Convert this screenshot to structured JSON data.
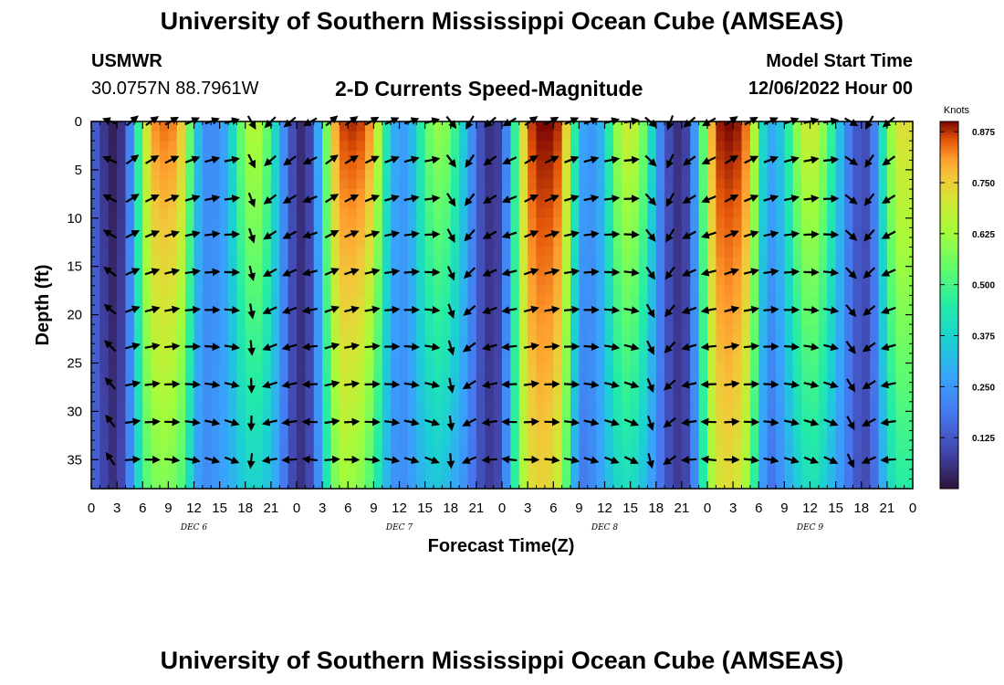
{
  "header": {
    "title": "University of Southern Mississippi Ocean Cube (AMSEAS)",
    "station": "USMWR",
    "coordinates": "30.0757N  88.7961W",
    "subtitle": "2-D Currents Speed-Magnitude",
    "model_start_label": "Model Start Time",
    "model_start_value": "12/06/2022 Hour 00"
  },
  "footer": {
    "title": "University of Southern Mississippi Ocean Cube (AMSEAS)"
  },
  "chart_data": {
    "type": "heatmap",
    "title": "2-D Currents Speed-Magnitude",
    "xlabel": "Forecast Time(Z)",
    "ylabel": "Depth (ft)",
    "x_ticks": [
      "0",
      "3",
      "6",
      "9",
      "12",
      "15",
      "18",
      "21",
      "0",
      "3",
      "6",
      "9",
      "12",
      "15",
      "18",
      "21",
      "0",
      "3",
      "6",
      "9",
      "12",
      "15",
      "18",
      "21",
      "0",
      "3",
      "6",
      "9",
      "12",
      "15",
      "18",
      "21",
      "0"
    ],
    "x_range_hours": [
      0,
      96
    ],
    "day_labels": [
      {
        "label": "DEC 6",
        "hour": 12
      },
      {
        "label": "DEC 7",
        "hour": 36
      },
      {
        "label": "DEC 8",
        "hour": 60
      },
      {
        "label": "DEC 9",
        "hour": 84
      }
    ],
    "y_ticks": [
      "0",
      "5",
      "10",
      "15",
      "20",
      "25",
      "30",
      "35"
    ],
    "y_tick_values": [
      0,
      5,
      10,
      15,
      20,
      25,
      30,
      35
    ],
    "y_range_ft": [
      0,
      38
    ],
    "colorbar": {
      "unit": "Knots",
      "ticks": [
        "0.875",
        "0.750",
        "0.625",
        "0.500",
        "0.375",
        "0.250",
        "0.125"
      ],
      "tick_values": [
        0.875,
        0.75,
        0.625,
        0.5,
        0.375,
        0.25,
        0.125
      ],
      "range": [
        0,
        0.9
      ]
    },
    "speed_profile": {
      "hours": [
        0,
        1,
        2,
        3,
        4,
        5,
        6,
        7,
        8,
        9,
        10,
        11,
        12,
        13,
        14,
        15,
        16,
        17,
        18,
        19,
        20,
        21,
        22,
        23,
        24,
        25,
        26,
        27,
        28,
        29,
        30,
        31,
        32,
        33,
        34,
        35,
        36,
        37,
        38,
        39,
        40,
        41,
        42,
        43,
        44,
        45,
        46,
        47,
        48,
        49,
        50,
        51,
        52,
        53,
        54,
        55,
        56,
        57,
        58,
        59,
        60,
        61,
        62,
        63,
        64,
        65,
        66,
        67,
        68,
        69,
        70,
        71,
        72,
        73,
        74,
        75,
        76,
        77,
        78,
        79,
        80,
        81,
        82,
        83,
        84,
        85,
        86,
        87,
        88,
        89,
        90,
        91,
        92,
        93,
        94,
        95,
        96
      ],
      "surface": [
        0.16,
        0.1,
        0.03,
        0.02,
        0.1,
        0.32,
        0.62,
        0.8,
        0.84,
        0.84,
        0.82,
        0.7,
        0.4,
        0.25,
        0.22,
        0.24,
        0.3,
        0.48,
        0.62,
        0.68,
        0.62,
        0.48,
        0.3,
        0.16,
        0.05,
        0.04,
        0.14,
        0.42,
        0.72,
        0.86,
        0.88,
        0.88,
        0.86,
        0.78,
        0.55,
        0.32,
        0.26,
        0.26,
        0.38,
        0.52,
        0.6,
        0.62,
        0.55,
        0.42,
        0.3,
        0.16,
        0.07,
        0.05,
        0.1,
        0.32,
        0.62,
        0.84,
        0.9,
        0.9,
        0.9,
        0.86,
        0.62,
        0.3,
        0.25,
        0.25,
        0.35,
        0.55,
        0.68,
        0.7,
        0.64,
        0.5,
        0.28,
        0.15,
        0.06,
        0.05,
        0.12,
        0.38,
        0.7,
        0.88,
        0.9,
        0.9,
        0.88,
        0.8,
        0.5,
        0.28,
        0.3,
        0.38,
        0.55,
        0.66,
        0.72,
        0.66,
        0.55,
        0.4,
        0.25,
        0.15,
        0.1,
        0.12,
        0.3,
        0.55,
        0.7,
        0.75,
        0.7
      ],
      "bottom": [
        0.16,
        0.12,
        0.06,
        0.05,
        0.14,
        0.3,
        0.48,
        0.56,
        0.58,
        0.58,
        0.55,
        0.48,
        0.3,
        0.22,
        0.24,
        0.26,
        0.28,
        0.32,
        0.36,
        0.38,
        0.36,
        0.32,
        0.24,
        0.14,
        0.06,
        0.06,
        0.14,
        0.32,
        0.52,
        0.62,
        0.62,
        0.6,
        0.56,
        0.48,
        0.36,
        0.26,
        0.22,
        0.24,
        0.28,
        0.32,
        0.34,
        0.34,
        0.3,
        0.26,
        0.22,
        0.14,
        0.08,
        0.07,
        0.12,
        0.34,
        0.58,
        0.7,
        0.74,
        0.74,
        0.72,
        0.64,
        0.4,
        0.18,
        0.2,
        0.24,
        0.3,
        0.36,
        0.4,
        0.4,
        0.36,
        0.3,
        0.22,
        0.14,
        0.08,
        0.07,
        0.12,
        0.32,
        0.56,
        0.7,
        0.72,
        0.72,
        0.68,
        0.58,
        0.34,
        0.16,
        0.2,
        0.26,
        0.32,
        0.38,
        0.42,
        0.4,
        0.34,
        0.28,
        0.22,
        0.15,
        0.1,
        0.11,
        0.22,
        0.36,
        0.44,
        0.46,
        0.44
      ]
    },
    "vector_rows_ft": [
      0,
      4,
      8,
      11.7,
      15.6,
      19.5,
      23.3,
      27.2,
      31.1,
      35
    ],
    "vector_hours": [
      0,
      2.3,
      4.7,
      7,
      9.3,
      11.7,
      14,
      16.3,
      18.7,
      21,
      23.3,
      25.7,
      28,
      30.3,
      32.7,
      35,
      37.3,
      39.7,
      42,
      44.3,
      46.7,
      49,
      51.3,
      53.7,
      56,
      58.3,
      60.7,
      63,
      65.3,
      67.7,
      70,
      72.3,
      74.7,
      77,
      79.3,
      81.7,
      84,
      86.3,
      88.7,
      91,
      93.3,
      95.7
    ],
    "vector_directions_deg": [
      210,
      200,
      -40,
      -35,
      -30,
      -25,
      -20,
      -15,
      60,
      135,
      140,
      150,
      -40,
      -35,
      -30,
      -25,
      -20,
      -15,
      50,
      120,
      140,
      150,
      -35,
      -30,
      -25,
      -20,
      -15,
      -10,
      40,
      110,
      140,
      150,
      -35,
      -30,
      -25,
      -20,
      -15,
      -10,
      30,
      120,
      140,
      150
    ]
  }
}
